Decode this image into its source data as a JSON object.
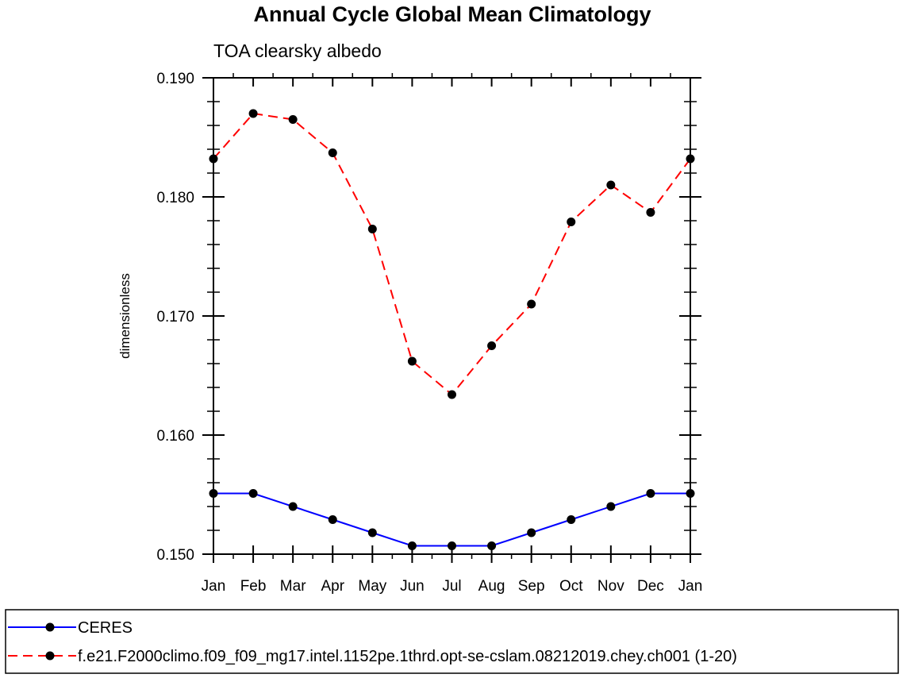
{
  "chart_data": {
    "type": "line",
    "title": "Annual Cycle Global Mean Climatology",
    "subtitle": "TOA clearsky albedo",
    "ylabel": "dimensionless",
    "xlabel": "",
    "categories": [
      "Jan",
      "Feb",
      "Mar",
      "Apr",
      "May",
      "Jun",
      "Jul",
      "Aug",
      "Sep",
      "Oct",
      "Nov",
      "Dec",
      "Jan"
    ],
    "ylim": [
      0.15,
      0.19
    ],
    "yticks": [
      "0.150",
      "0.160",
      "0.170",
      "0.180",
      "0.190"
    ],
    "grid": false,
    "legend_position": "bottom",
    "series": [
      {
        "name": "CERES",
        "color": "#0000ff",
        "dash": "solid",
        "marker": "filled-circle",
        "values": [
          0.1551,
          0.1551,
          0.154,
          0.1529,
          0.1518,
          0.1507,
          0.1507,
          0.1507,
          0.1518,
          0.1529,
          0.154,
          0.1551,
          0.1551
        ]
      },
      {
        "name": "f.e21.F2000climo.f09_f09_mg17.intel.1152pe.1thrd.opt-se-cslam.08212019.chey.ch001 (1-20)",
        "color": "#ff0000",
        "dash": "dashed",
        "marker": "filled-circle",
        "values": [
          0.1832,
          0.187,
          0.1865,
          0.1837,
          0.1773,
          0.1662,
          0.1634,
          0.1675,
          0.171,
          0.1779,
          0.181,
          0.1787,
          0.1832
        ]
      }
    ]
  }
}
